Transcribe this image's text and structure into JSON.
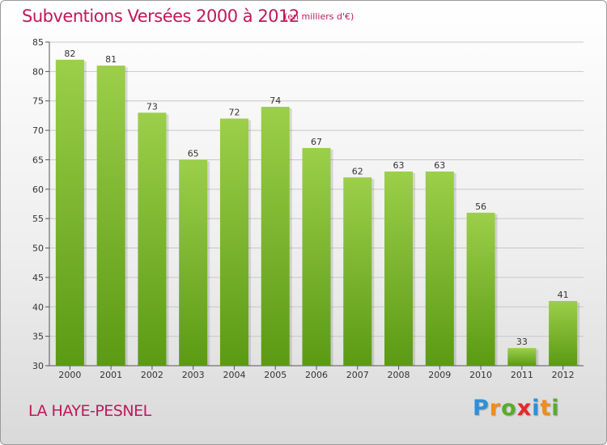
{
  "header": {
    "title": "Subventions Versées 2000 à 2012",
    "subtitle": "(en milliers d'€)"
  },
  "footer": {
    "commune": "LA HAYE-PESNEL",
    "logo": {
      "letters": [
        "P",
        "r",
        "o",
        "x",
        "i",
        "t",
        "i"
      ],
      "colors": [
        "#2f8fd6",
        "#f28c1b",
        "#5aab2e",
        "#e8262a",
        "#2f8fd6",
        "#f28c1b",
        "#5aab2e"
      ]
    }
  },
  "chart_data": {
    "type": "bar",
    "categories": [
      "2000",
      "2001",
      "2002",
      "2003",
      "2004",
      "2005",
      "2006",
      "2007",
      "2008",
      "2009",
      "2010",
      "2011",
      "2012"
    ],
    "values": [
      82,
      81,
      73,
      65,
      72,
      74,
      67,
      62,
      63,
      63,
      56,
      33,
      41
    ],
    "yticks": [
      30,
      35,
      40,
      45,
      50,
      55,
      60,
      65,
      70,
      75,
      80,
      85
    ],
    "ylim": [
      30,
      85
    ],
    "grid": true,
    "bar_color_top": "#9ccf4a",
    "bar_color_bottom": "#5b9a14",
    "grid_color": "#c8c8c8"
  }
}
